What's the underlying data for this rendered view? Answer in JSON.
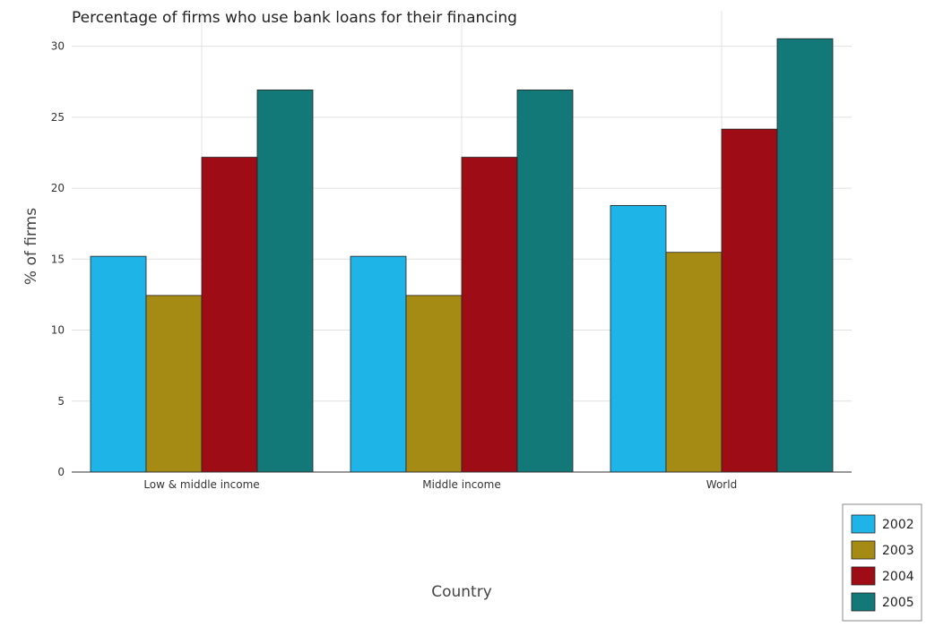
{
  "chart_data": {
    "type": "bar",
    "title": "Percentage of firms who use bank loans for their financing",
    "xlabel": "Country",
    "ylabel": "% of firms",
    "categories": [
      "Low & middle income",
      "Middle income",
      "World"
    ],
    "series": [
      {
        "name": "2002",
        "color": "#1eb4e8",
        "values": [
          15.2,
          15.2,
          18.78
        ]
      },
      {
        "name": "2003",
        "color": "#a58a14",
        "values": [
          12.44,
          12.44,
          15.48
        ]
      },
      {
        "name": "2004",
        "color": "#9e0d15",
        "values": [
          22.18,
          22.18,
          24.16
        ]
      },
      {
        "name": "2005",
        "color": "#127878",
        "values": [
          26.92,
          26.92,
          30.53
        ]
      }
    ],
    "ylim": [
      0,
      32.5
    ],
    "yticks": [
      0,
      5,
      10,
      15,
      20,
      25,
      30
    ],
    "grid": true,
    "legend_position": "bottom-right"
  }
}
